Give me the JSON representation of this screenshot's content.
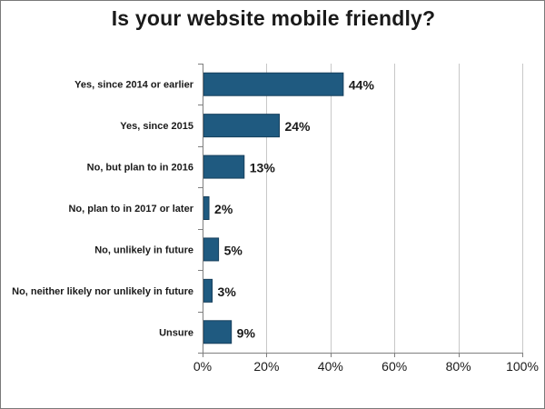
{
  "chart_data": {
    "type": "bar",
    "orientation": "horizontal",
    "title": "Is your website mobile friendly?",
    "categories": [
      "Yes, since 2014 or earlier",
      "Yes, since 2015",
      "No, but plan to in 2016",
      "No, plan to in 2017 or later",
      "No, unlikely in future",
      "No, neither likely nor unlikely in future",
      "Unsure"
    ],
    "values": [
      44,
      24,
      13,
      2,
      5,
      3,
      9
    ],
    "data_labels": [
      "44%",
      "24%",
      "13%",
      "2%",
      "5%",
      "3%",
      "9%"
    ],
    "xlim": [
      0,
      100
    ],
    "x_ticks": [
      0,
      20,
      40,
      60,
      80,
      100
    ],
    "x_tick_labels": [
      "0%",
      "20%",
      "40%",
      "60%",
      "80%",
      "100%"
    ],
    "grid": "vertical",
    "legend": "none",
    "colors": {
      "bar": "#1f5a80",
      "bar_edge": "#163f5c",
      "grid": "#c8c8c8",
      "axis": "#7f7f7f"
    }
  }
}
